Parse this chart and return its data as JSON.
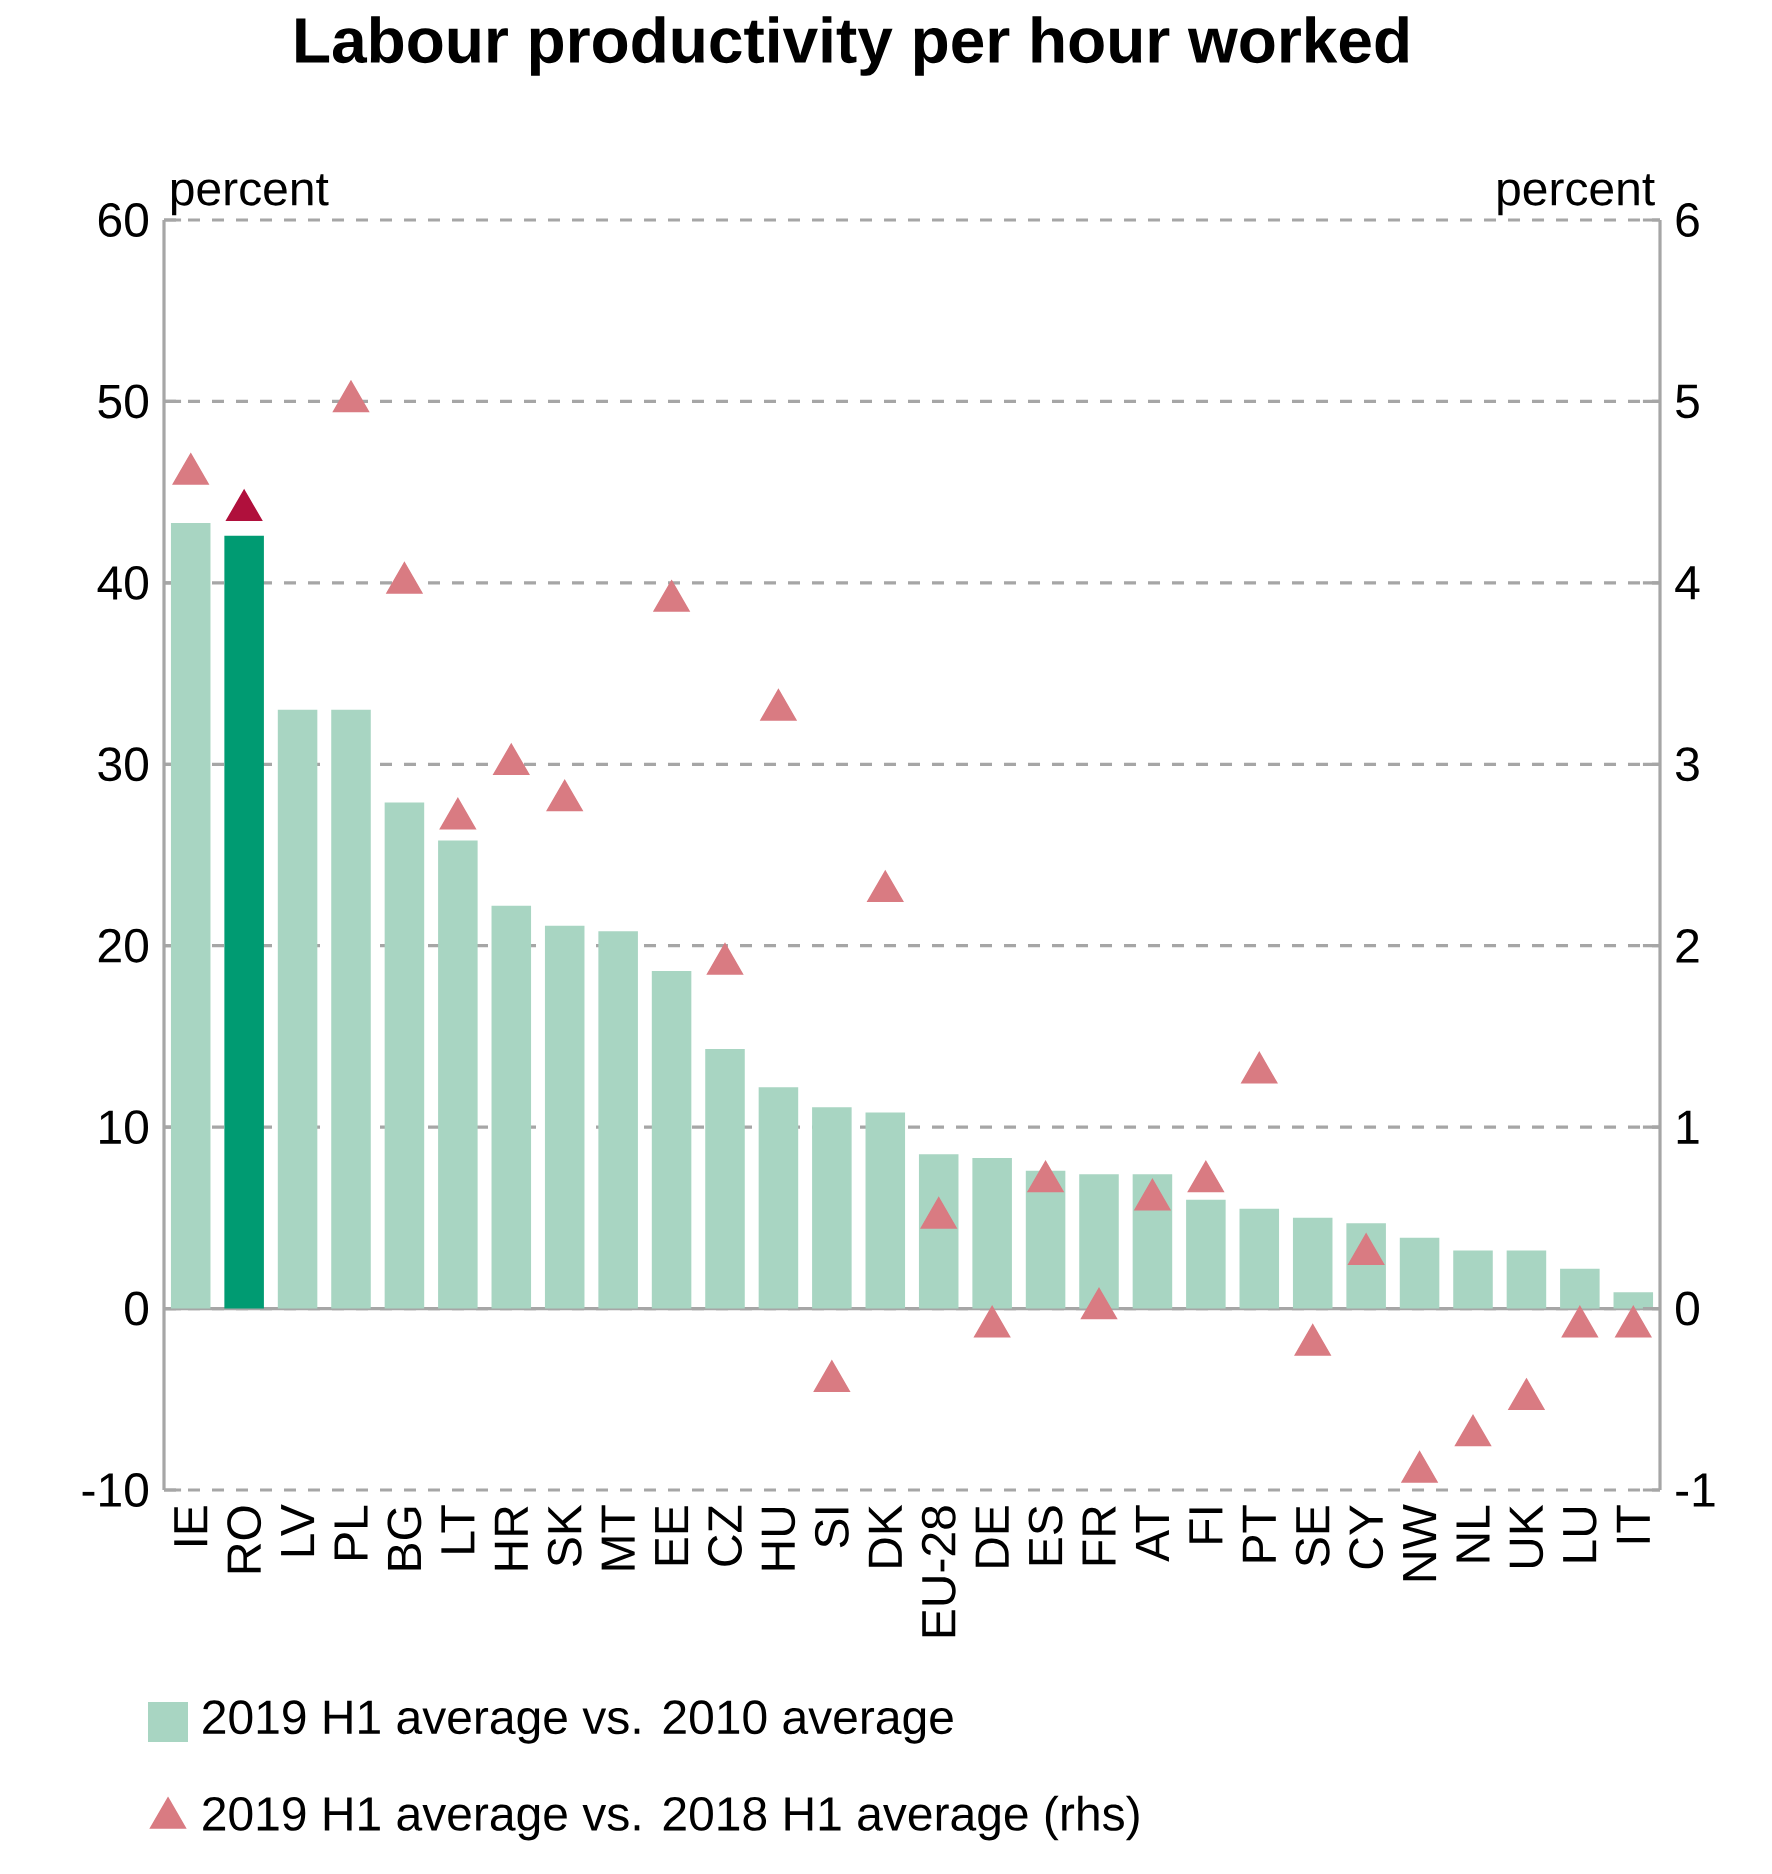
{
  "chart_data": {
    "type": "bar",
    "title": "Labour productivity per hour worked",
    "ylabel": "percent",
    "y2label": "percent",
    "categories": [
      "IE",
      "RO",
      "LV",
      "PL",
      "BG",
      "LT",
      "HR",
      "SK",
      "MT",
      "EE",
      "CZ",
      "HU",
      "SI",
      "DK",
      "EU-28",
      "DE",
      "ES",
      "FR",
      "AT",
      "FI",
      "PT",
      "SE",
      "CY",
      "NW",
      "NL",
      "UK",
      "LU",
      "IT"
    ],
    "series": [
      {
        "name": "2019 H1 average vs. 2010 average",
        "color": "#a8d5c2",
        "colors": [
          "#a8d5c2",
          "#009b72",
          "#a8d5c2",
          "#a8d5c2",
          "#a8d5c2",
          "#a8d5c2",
          "#a8d5c2",
          "#a8d5c2",
          "#a8d5c2",
          "#a8d5c2",
          "#a8d5c2",
          "#a8d5c2",
          "#a8d5c2",
          "#a8d5c2",
          "#a8d5c2",
          "#a8d5c2",
          "#a8d5c2",
          "#a8d5c2",
          "#a8d5c2",
          "#a8d5c2",
          "#a8d5c2",
          "#a8d5c2",
          "#a8d5c2",
          "#a8d5c2",
          "#a8d5c2",
          "#a8d5c2",
          "#a8d5c2",
          "#a8d5c2"
        ],
        "values": [
          43.3,
          42.6,
          33.0,
          33.0,
          27.9,
          25.8,
          22.2,
          21.1,
          20.8,
          18.6,
          14.3,
          12.2,
          11.1,
          10.8,
          8.5,
          8.3,
          7.6,
          7.4,
          7.4,
          6.0,
          5.5,
          5.0,
          4.7,
          3.9,
          3.2,
          3.2,
          2.2,
          0.9
        ]
      },
      {
        "name": "2019 H1 average vs. 2018 H1 average (rhs)",
        "type": "scatter",
        "axis": "y2",
        "marker": "triangle",
        "color": "#d97b82",
        "colors": [
          "#d97b82",
          "#b0103c",
          "#d97b82",
          "#d97b82",
          "#d97b82",
          "#d97b82",
          "#d97b82",
          "#d97b82",
          "#d97b82",
          "#d97b82",
          "#d97b82",
          "#d97b82",
          "#d97b82",
          "#d97b82",
          "#d97b82",
          "#d97b82",
          "#d97b82",
          "#d97b82",
          "#d97b82",
          "#d97b82",
          "#d97b82",
          "#d97b82",
          "#d97b82",
          "#d97b82",
          "#d97b82",
          "#d97b82",
          "#d97b82",
          "#d97b82"
        ],
        "values": [
          4.6,
          4.4,
          null,
          5.0,
          4.0,
          2.7,
          3.0,
          2.8,
          null,
          3.9,
          1.9,
          3.3,
          -0.4,
          2.3,
          0.5,
          -0.1,
          0.7,
          0.0,
          0.6,
          0.7,
          1.3,
          -0.2,
          0.3,
          -0.9,
          -0.7,
          -0.5,
          -0.1,
          -0.1
        ]
      }
    ],
    "ylim": [
      -10,
      60
    ],
    "yticks": [
      -10,
      0,
      10,
      20,
      30,
      40,
      50,
      60
    ],
    "y2lim": [
      -1,
      6
    ],
    "y2ticks": [
      -1,
      0,
      1,
      2,
      3,
      4,
      5,
      6
    ],
    "grid": "y",
    "legend": "bottom"
  }
}
